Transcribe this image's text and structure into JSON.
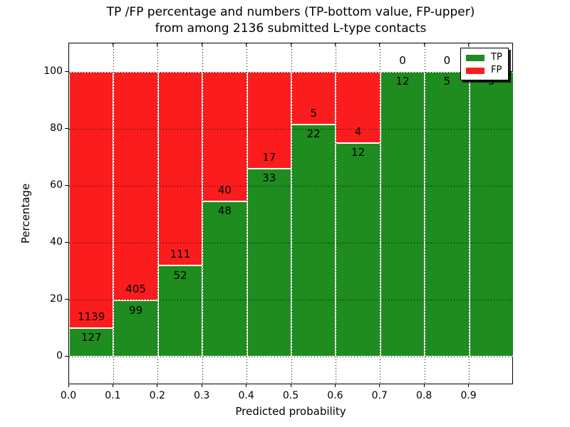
{
  "title": {
    "line1": "TP /FP percentage and numbers (TP-bottom value, FP-upper)",
    "line2": "from among 2136 submitted L-type contacts"
  },
  "axes": {
    "xlabel": "Predicted probability",
    "ylabel": "Percentage",
    "x_tick_labels": [
      "0.0",
      "0.1",
      "0.2",
      "0.3",
      "0.4",
      "0.5",
      "0.6",
      "0.7",
      "0.8",
      "0.9"
    ],
    "y_tick_labels": [
      "0",
      "20",
      "40",
      "60",
      "80",
      "100"
    ],
    "xlim": [
      0.0,
      1.0
    ],
    "ylim": [
      -10,
      110
    ],
    "grid_style": "dotted"
  },
  "legend": {
    "position": "upper-right",
    "items": [
      {
        "label": "TP",
        "color": "#1e8c1e"
      },
      {
        "label": "FP",
        "color": "#fb1d1d"
      }
    ]
  },
  "colors": {
    "tp": "#1e8c1e",
    "fp": "#fb1d1d",
    "bar_edge": "#ffffff",
    "grid": "#000000",
    "axis": "#000000",
    "background": "#ffffff"
  },
  "chart_data": {
    "type": "bar",
    "stacked": true,
    "normalized_to_percent": true,
    "title": "TP /FP percentage and numbers (TP-bottom value, FP-upper) from among 2136 submitted L-type contacts",
    "xlabel": "Predicted probability",
    "ylabel": "Percentage",
    "total_submitted": 2136,
    "bin_width": 0.1,
    "legend_entries": [
      "TP",
      "FP"
    ],
    "bins": [
      {
        "x_start": 0.0,
        "tp": 127,
        "fp": 1139,
        "tp_percent": 10.0
      },
      {
        "x_start": 0.1,
        "tp": 99,
        "fp": 405,
        "tp_percent": 19.6
      },
      {
        "x_start": 0.2,
        "tp": 52,
        "fp": 111,
        "tp_percent": 31.9
      },
      {
        "x_start": 0.3,
        "tp": 48,
        "fp": 40,
        "tp_percent": 54.5
      },
      {
        "x_start": 0.4,
        "tp": 33,
        "fp": 17,
        "tp_percent": 66.0
      },
      {
        "x_start": 0.5,
        "tp": 22,
        "fp": 5,
        "tp_percent": 81.5
      },
      {
        "x_start": 0.6,
        "tp": 12,
        "fp": 4,
        "tp_percent": 75.0
      },
      {
        "x_start": 0.7,
        "tp": 12,
        "fp": 0,
        "tp_percent": 100.0
      },
      {
        "x_start": 0.8,
        "tp": 5,
        "fp": 0,
        "tp_percent": 100.0
      },
      {
        "x_start": 0.9,
        "tp": 5,
        "fp": 0,
        "tp_percent": 100.0
      }
    ]
  }
}
